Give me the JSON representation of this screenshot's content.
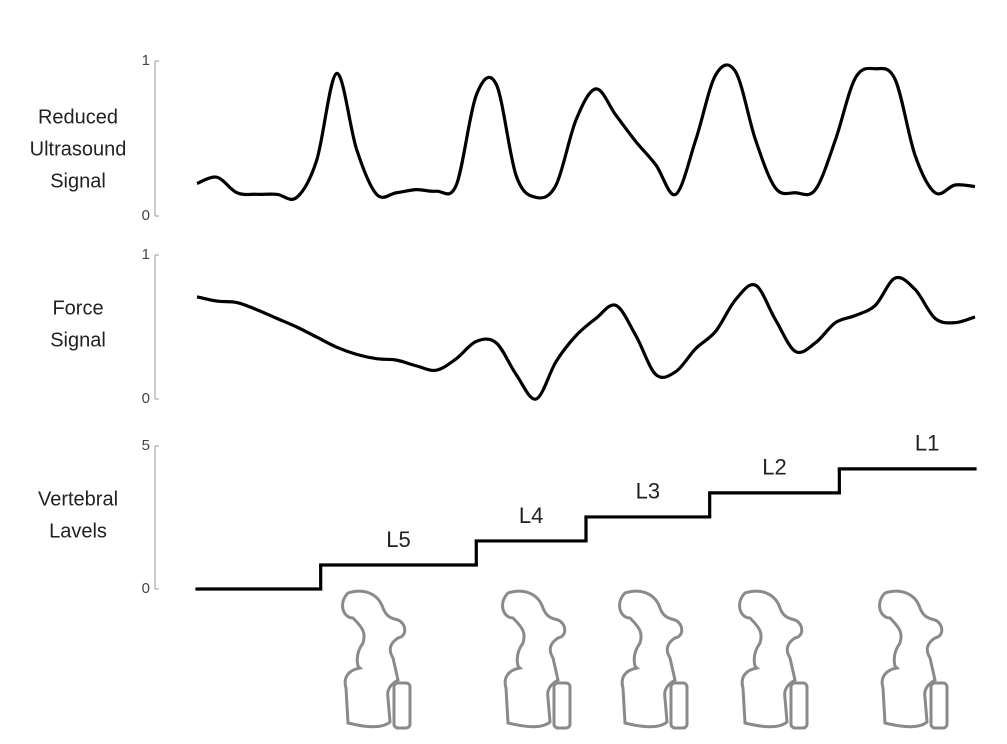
{
  "chart_data": [
    {
      "type": "line",
      "ylabel": [
        "Reduced",
        "Ultrasound",
        "Signal"
      ],
      "xlim": [
        0,
        39
      ],
      "ylim": [
        0,
        1
      ],
      "yticks": [
        0,
        1
      ],
      "color": "#000000",
      "values": [
        0.21,
        0.25,
        0.15,
        0.14,
        0.14,
        0.12,
        0.36,
        0.92,
        0.43,
        0.14,
        0.15,
        0.17,
        0.16,
        0.2,
        0.78,
        0.85,
        0.26,
        0.12,
        0.2,
        0.62,
        0.82,
        0.65,
        0.48,
        0.33,
        0.14,
        0.49,
        0.91,
        0.93,
        0.49,
        0.18,
        0.15,
        0.17,
        0.49,
        0.89,
        0.95,
        0.88,
        0.39,
        0.15,
        0.2,
        0.19
      ]
    },
    {
      "type": "line",
      "ylabel": [
        "Force",
        "Signal"
      ],
      "xlim": [
        0,
        39
      ],
      "ylim": [
        0,
        1
      ],
      "yticks": [
        0,
        1
      ],
      "color": "#000000",
      "values": [
        0.71,
        0.68,
        0.67,
        0.62,
        0.56,
        0.5,
        0.43,
        0.36,
        0.31,
        0.28,
        0.27,
        0.23,
        0.2,
        0.28,
        0.4,
        0.39,
        0.17,
        0,
        0.26,
        0.44,
        0.56,
        0.65,
        0.44,
        0.17,
        0.19,
        0.35,
        0.47,
        0.69,
        0.79,
        0.55,
        0.33,
        0.39,
        0.53,
        0.58,
        0.65,
        0.84,
        0.76,
        0.56,
        0.53,
        0.57
      ]
    },
    {
      "type": "step",
      "ylabel": [
        "Vertebral",
        "Lavels"
      ],
      "xlim": [
        0,
        39
      ],
      "ylim": [
        0,
        5
      ],
      "yticks": [
        0,
        5
      ],
      "color": "#000000",
      "x": [
        0,
        6.2,
        14,
        19.5,
        25.7,
        32.2
      ],
      "values": [
        0,
        0.84,
        1.68,
        2.52,
        3.36,
        4.2
      ],
      "labels": [
        null,
        "L5",
        "L4",
        "L3",
        "L2",
        "L1"
      ]
    }
  ]
}
